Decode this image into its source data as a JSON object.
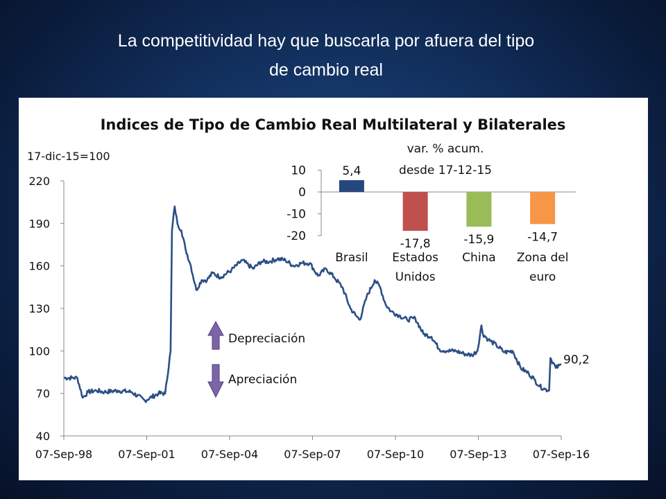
{
  "slide": {
    "title_line1": "La competitividad hay que buscarla por afuera del tipo",
    "title_line2": "de cambio real"
  },
  "chart_data": [
    {
      "type": "line",
      "title": "Indices de Tipo de Cambio Real Multilateral y Bilaterales",
      "ylabel": "17-dic-15=100",
      "ylim": [
        40,
        220
      ],
      "yticks": [
        40,
        70,
        100,
        130,
        160,
        190,
        220
      ],
      "xticks": [
        "07-Sep-98",
        "07-Sep-01",
        "07-Sep-04",
        "07-Sep-07",
        "07-Sep-10",
        "07-Sep-13",
        "07-Sep-16"
      ],
      "x_range": [
        1998.0,
        2016.4
      ],
      "last_value_label": "90,2",
      "line_color": "#2b4f86",
      "series": [
        {
          "x": [
            1998.0,
            1998.3,
            1998.5,
            1998.7,
            1998.9,
            1999.2,
            1999.5,
            2000.0,
            2000.5,
            2001.0,
            2001.5,
            2001.75,
            2001.95,
            2002.0,
            2002.1,
            2002.2,
            2002.35,
            2002.5,
            2002.7,
            2002.9,
            2003.1,
            2003.3,
            2003.5,
            2003.8,
            2004.2,
            2004.6,
            2005.0,
            2005.3,
            2005.6,
            2005.9,
            2006.2,
            2006.5,
            2006.8,
            2007.1,
            2007.4,
            2007.7,
            2008.0,
            2008.3,
            2008.6,
            2008.8,
            2008.95,
            2009.2,
            2009.5,
            2009.7,
            2009.9,
            2010.1,
            2010.4,
            2010.7,
            2011.0,
            2011.3,
            2011.6,
            2011.9,
            2012.2,
            2012.5,
            2012.8,
            2013.1,
            2013.3,
            2013.45,
            2013.5,
            2013.7,
            2014.0,
            2014.3,
            2014.6,
            2014.9,
            2015.2,
            2015.4,
            2015.6,
            2015.8,
            2015.95,
            2016.0,
            2016.2,
            2016.4
          ],
          "y": [
            81,
            81,
            81,
            67,
            71,
            72,
            71,
            72,
            71,
            65,
            70,
            70,
            100,
            185,
            202,
            190,
            185,
            172,
            160,
            143,
            150,
            150,
            155,
            152,
            157,
            164,
            158,
            163,
            163,
            165,
            164,
            160,
            162,
            162,
            153,
            158,
            152,
            145,
            130,
            125,
            122,
            138,
            150,
            145,
            133,
            128,
            125,
            122,
            123,
            112,
            110,
            101,
            100,
            100,
            98,
            97,
            100,
            118,
            112,
            108,
            104,
            99,
            100,
            88,
            84,
            80,
            75,
            73,
            72,
            95,
            88,
            90.2
          ]
        }
      ]
    },
    {
      "type": "bar",
      "title": "var. % acum. desde 17-12-15",
      "title_line1": "var. % acum.",
      "title_line2": "desde 17-12-15",
      "ylim": [
        -20,
        10
      ],
      "yticks": [
        10,
        0,
        -10,
        -20
      ],
      "categories": [
        [
          "Brasil"
        ],
        [
          "Estados",
          "Unidos"
        ],
        [
          "China"
        ],
        [
          "Zona del",
          "euro"
        ]
      ],
      "values": [
        5.4,
        -17.8,
        -15.9,
        -14.7
      ],
      "value_labels": [
        "5,4",
        "-17,8",
        "-15,9",
        "-14,7"
      ],
      "colors": [
        "#25477d",
        "#c0504d",
        "#9bbb59",
        "#f79646"
      ]
    }
  ],
  "legend_annotations": {
    "up_label": "Depreciación",
    "down_label": "Apreciación",
    "arrow_color": "#7d64a8"
  }
}
